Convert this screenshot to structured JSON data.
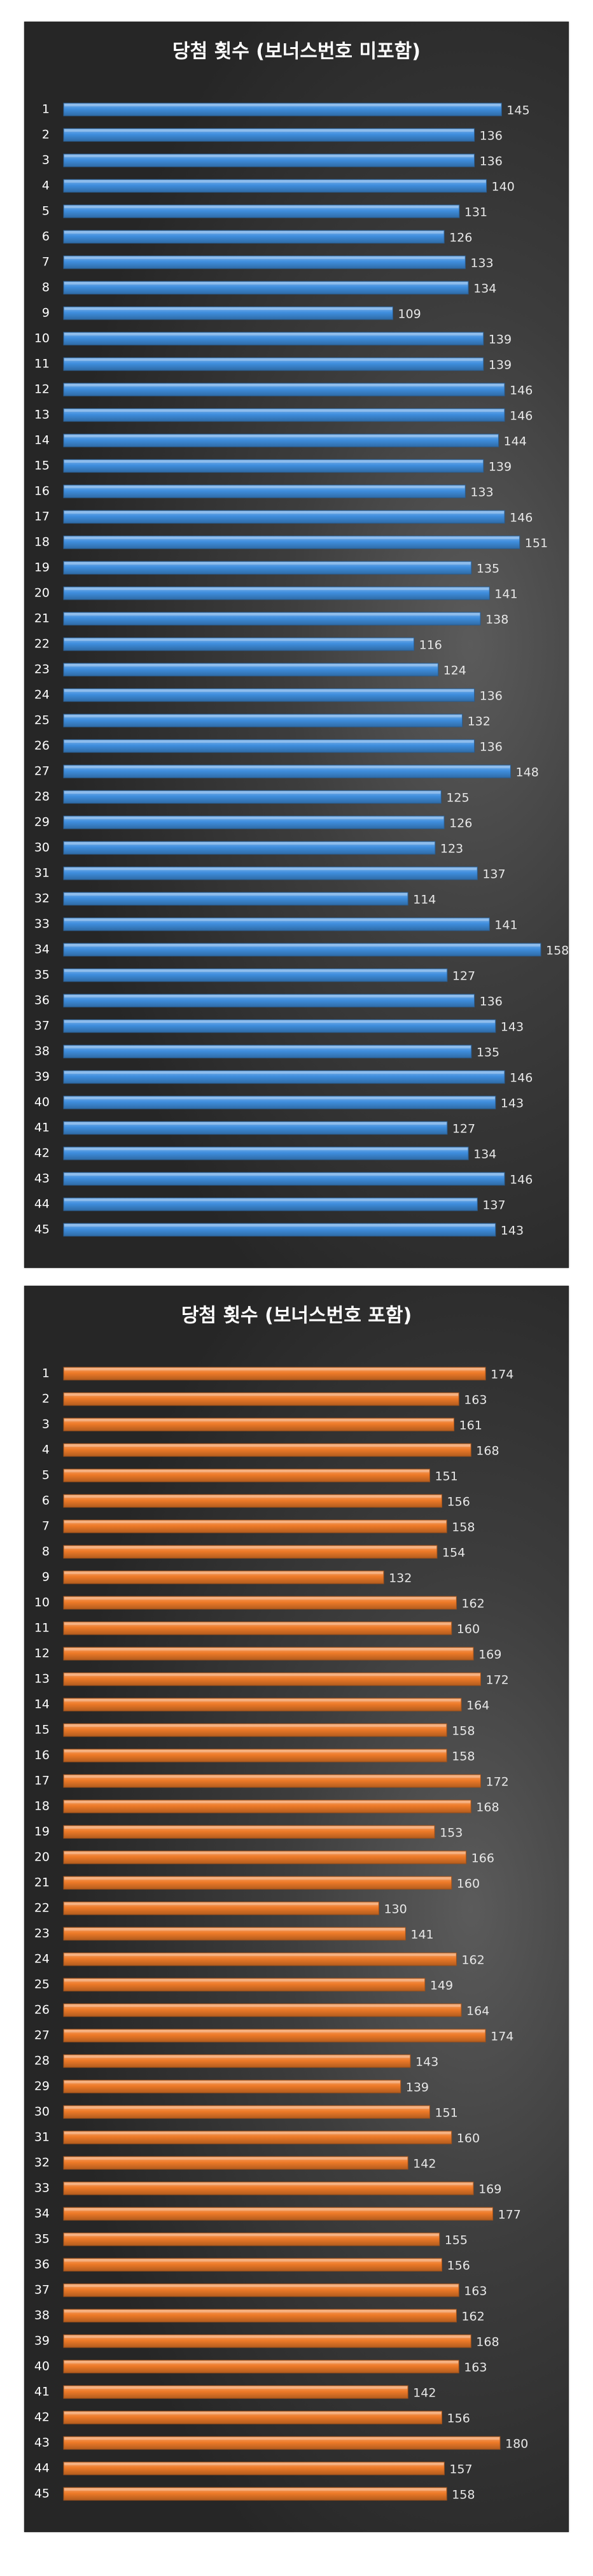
{
  "chart_data": [
    {
      "type": "bar",
      "orientation": "horizontal",
      "title": "당첨 횟수 (보너스번호 미포함)",
      "color": "#3f8ede",
      "categories": [
        "1",
        "2",
        "3",
        "4",
        "5",
        "6",
        "7",
        "8",
        "9",
        "10",
        "11",
        "12",
        "13",
        "14",
        "15",
        "16",
        "17",
        "18",
        "19",
        "20",
        "21",
        "22",
        "23",
        "24",
        "25",
        "26",
        "27",
        "28",
        "29",
        "30",
        "31",
        "32",
        "33",
        "34",
        "35",
        "36",
        "37",
        "38",
        "39",
        "40",
        "41",
        "42",
        "43",
        "44",
        "45"
      ],
      "values": [
        145,
        136,
        136,
        140,
        131,
        126,
        133,
        134,
        109,
        139,
        139,
        146,
        146,
        144,
        139,
        133,
        146,
        151,
        135,
        141,
        138,
        116,
        124,
        136,
        132,
        136,
        148,
        125,
        126,
        123,
        137,
        114,
        141,
        158,
        127,
        136,
        143,
        135,
        146,
        143,
        127,
        134,
        146,
        137,
        143
      ],
      "data_labels": true,
      "grid": false,
      "legend": "none"
    },
    {
      "type": "bar",
      "orientation": "horizontal",
      "title": "당첨 횟수 (보너스번호 포함)",
      "color": "#ee7a28",
      "categories": [
        "1",
        "2",
        "3",
        "4",
        "5",
        "6",
        "7",
        "8",
        "9",
        "10",
        "11",
        "12",
        "13",
        "14",
        "15",
        "16",
        "17",
        "18",
        "19",
        "20",
        "21",
        "22",
        "23",
        "24",
        "25",
        "26",
        "27",
        "28",
        "29",
        "30",
        "31",
        "32",
        "33",
        "34",
        "35",
        "36",
        "37",
        "38",
        "39",
        "40",
        "41",
        "42",
        "43",
        "44",
        "45"
      ],
      "values": [
        174,
        163,
        161,
        168,
        151,
        156,
        158,
        154,
        132,
        162,
        160,
        169,
        172,
        164,
        158,
        158,
        172,
        168,
        153,
        166,
        160,
        130,
        141,
        162,
        149,
        164,
        174,
        143,
        139,
        151,
        160,
        142,
        169,
        177,
        155,
        156,
        163,
        162,
        168,
        163,
        142,
        156,
        180,
        157,
        158
      ],
      "data_labels": true,
      "grid": false,
      "legend": "none"
    }
  ]
}
